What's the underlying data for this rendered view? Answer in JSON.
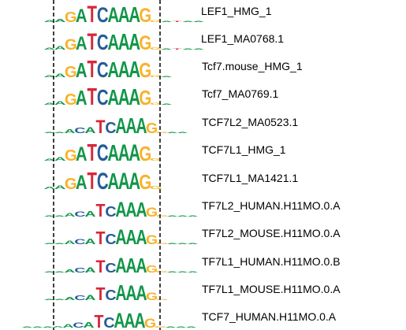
{
  "colors": {
    "A": "#109648",
    "C": "#255c99",
    "G": "#f7b32b",
    "T": "#d62839"
  },
  "motifs": [
    {
      "name": "LEF1_HMG_1",
      "letters": [
        [
          "A",
          0.1
        ],
        [
          "A",
          0.16
        ],
        [
          "G",
          0.55
        ],
        [
          "A",
          0.72
        ],
        [
          "T",
          0.9
        ],
        [
          "C",
          0.8
        ],
        [
          "A",
          0.8
        ],
        [
          "A",
          0.84
        ],
        [
          "A",
          0.84
        ],
        [
          "G",
          0.74
        ],
        [
          "G",
          0.12
        ],
        [
          "A",
          0.06
        ],
        [
          "T",
          0.05
        ],
        [
          "A",
          0.05
        ],
        [
          "A",
          0.04
        ]
      ]
    },
    {
      "name": "LEF1_MA0768.1",
      "letters": [
        [
          "A",
          0.12
        ],
        [
          "A",
          0.18
        ],
        [
          "G",
          0.58
        ],
        [
          "A",
          0.72
        ],
        [
          "T",
          0.9
        ],
        [
          "C",
          0.82
        ],
        [
          "A",
          0.82
        ],
        [
          "A",
          0.85
        ],
        [
          "A",
          0.85
        ],
        [
          "G",
          0.75
        ],
        [
          "G",
          0.14
        ],
        [
          "A",
          0.05
        ],
        [
          "T",
          0.05
        ],
        [
          "A",
          0.05
        ],
        [
          "A",
          0.04
        ]
      ]
    },
    {
      "name": "Tcf7.mouse_HMG_1",
      "letters": [
        [
          "A",
          0.12
        ],
        [
          "A",
          0.18
        ],
        [
          "G",
          0.6
        ],
        [
          "A",
          0.78
        ],
        [
          "T",
          0.92
        ],
        [
          "C",
          0.82
        ],
        [
          "A",
          0.82
        ],
        [
          "A",
          0.85
        ],
        [
          "A",
          0.85
        ],
        [
          "G",
          0.78
        ],
        [
          "G",
          0.12
        ],
        [
          "A",
          0.05
        ]
      ]
    },
    {
      "name": "Tcf7_MA0769.1",
      "letters": [
        [
          "A",
          0.12
        ],
        [
          "A",
          0.18
        ],
        [
          "G",
          0.6
        ],
        [
          "A",
          0.78
        ],
        [
          "T",
          0.92
        ],
        [
          "C",
          0.82
        ],
        [
          "A",
          0.82
        ],
        [
          "A",
          0.85
        ],
        [
          "A",
          0.85
        ],
        [
          "G",
          0.78
        ],
        [
          "G",
          0.12
        ],
        [
          "A",
          0.05
        ]
      ]
    },
    {
      "name": "TCF7L2_MA0523.1",
      "letters": [
        [
          "A",
          0.04
        ],
        [
          "A",
          0.06
        ],
        [
          "A",
          0.22
        ],
        [
          "C",
          0.3
        ],
        [
          "A",
          0.32
        ],
        [
          "T",
          0.72
        ],
        [
          "C",
          0.62
        ],
        [
          "A",
          0.82
        ],
        [
          "A",
          0.82
        ],
        [
          "A",
          0.84
        ],
        [
          "G",
          0.55
        ],
        [
          "G",
          0.08
        ],
        [
          "A",
          0.05
        ],
        [
          "A",
          0.03
        ]
      ]
    },
    {
      "name": "TCF7L1_HMG_1",
      "letters": [
        [
          "A",
          0.12
        ],
        [
          "A",
          0.18
        ],
        [
          "G",
          0.6
        ],
        [
          "A",
          0.75
        ],
        [
          "T",
          0.92
        ],
        [
          "C",
          0.88
        ],
        [
          "A",
          0.85
        ],
        [
          "A",
          0.88
        ],
        [
          "A",
          0.88
        ],
        [
          "G",
          0.78
        ],
        [
          "G",
          0.14
        ]
      ]
    },
    {
      "name": "TCF7L1_MA1421.1",
      "letters": [
        [
          "A",
          0.14
        ],
        [
          "A",
          0.2
        ],
        [
          "G",
          0.62
        ],
        [
          "A",
          0.75
        ],
        [
          "T",
          0.92
        ],
        [
          "C",
          0.9
        ],
        [
          "A",
          0.85
        ],
        [
          "A",
          0.88
        ],
        [
          "A",
          0.88
        ],
        [
          "G",
          0.78
        ],
        [
          "G",
          0.15
        ]
      ]
    },
    {
      "name": "TF7L2_HUMAN.H11MO.0.A",
      "letters": [
        [
          "A",
          0.03
        ],
        [
          "A",
          0.05
        ],
        [
          "A",
          0.2
        ],
        [
          "C",
          0.28
        ],
        [
          "A",
          0.3
        ],
        [
          "T",
          0.7
        ],
        [
          "C",
          0.55
        ],
        [
          "A",
          0.8
        ],
        [
          "A",
          0.78
        ],
        [
          "A",
          0.78
        ],
        [
          "G",
          0.5
        ],
        [
          "G",
          0.08
        ],
        [
          "A",
          0.04
        ],
        [
          "A",
          0.03
        ],
        [
          "A",
          0.02
        ]
      ]
    },
    {
      "name": "TF7L2_MOUSE.H11MO.0.A",
      "letters": [
        [
          "A",
          0.03
        ],
        [
          "A",
          0.05
        ],
        [
          "A",
          0.2
        ],
        [
          "C",
          0.28
        ],
        [
          "A",
          0.3
        ],
        [
          "T",
          0.7
        ],
        [
          "C",
          0.55
        ],
        [
          "A",
          0.8
        ],
        [
          "A",
          0.78
        ],
        [
          "A",
          0.78
        ],
        [
          "G",
          0.5
        ],
        [
          "G",
          0.08
        ],
        [
          "A",
          0.04
        ],
        [
          "A",
          0.03
        ],
        [
          "A",
          0.02
        ]
      ]
    },
    {
      "name": "TF7L1_HUMAN.H11MO.0.B",
      "letters": [
        [
          "A",
          0.03
        ],
        [
          "A",
          0.05
        ],
        [
          "A",
          0.16
        ],
        [
          "C",
          0.25
        ],
        [
          "A",
          0.28
        ],
        [
          "T",
          0.66
        ],
        [
          "C",
          0.52
        ],
        [
          "A",
          0.8
        ],
        [
          "A",
          0.78
        ],
        [
          "A",
          0.78
        ],
        [
          "G",
          0.4
        ],
        [
          "G",
          0.08
        ],
        [
          "A",
          0.04
        ],
        [
          "A",
          0.03
        ],
        [
          "A",
          0.02
        ]
      ]
    },
    {
      "name": "TF7L1_MOUSE.H11MO.0.A",
      "letters": [
        [
          "A",
          0.03
        ],
        [
          "A",
          0.04
        ],
        [
          "A",
          0.16
        ],
        [
          "C",
          0.25
        ],
        [
          "A",
          0.28
        ],
        [
          "T",
          0.7
        ],
        [
          "C",
          0.55
        ],
        [
          "A",
          0.82
        ],
        [
          "A",
          0.8
        ],
        [
          "A",
          0.8
        ],
        [
          "G",
          0.42
        ],
        [
          "G",
          0.06
        ]
      ]
    },
    {
      "name": "TCF7_HUMAN.H11MO.0.A",
      "letters": [
        [
          "A",
          0.03
        ],
        [
          "A",
          0.04
        ],
        [
          "A",
          0.05
        ],
        [
          "A",
          0.08
        ],
        [
          "A",
          0.2
        ],
        [
          "C",
          0.28
        ],
        [
          "A",
          0.3
        ],
        [
          "T",
          0.7
        ],
        [
          "C",
          0.55
        ],
        [
          "A",
          0.8
        ],
        [
          "A",
          0.78
        ],
        [
          "A",
          0.8
        ],
        [
          "G",
          0.5
        ],
        [
          "G",
          0.08
        ],
        [
          "A",
          0.04
        ],
        [
          "A",
          0.03
        ],
        [
          "A",
          0.02
        ]
      ]
    }
  ]
}
